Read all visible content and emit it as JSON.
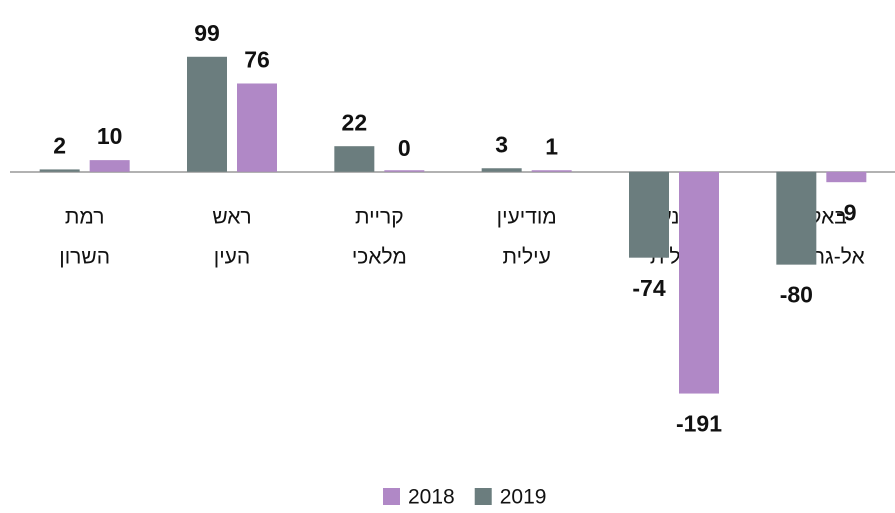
{
  "chart_data": {
    "type": "bar",
    "categories": [
      [
        "רמת",
        "השרון"
      ],
      [
        "ראש",
        "העין"
      ],
      [
        "קריית",
        "מלאכי"
      ],
      [
        "מודיעין",
        "עילית"
      ],
      [
        "יוקנעם",
        "עילית"
      ],
      [
        "באקה",
        "אל-גרבייה"
      ]
    ],
    "series": [
      {
        "name": "2018",
        "color": "#b088c6",
        "values": [
          10,
          76,
          0,
          1,
          -191,
          -9
        ]
      },
      {
        "name": "2019",
        "color": "#6b7d7e",
        "values": [
          2,
          99,
          22,
          3,
          -74,
          -80
        ]
      }
    ],
    "ylim": [
      -200,
      110
    ]
  }
}
